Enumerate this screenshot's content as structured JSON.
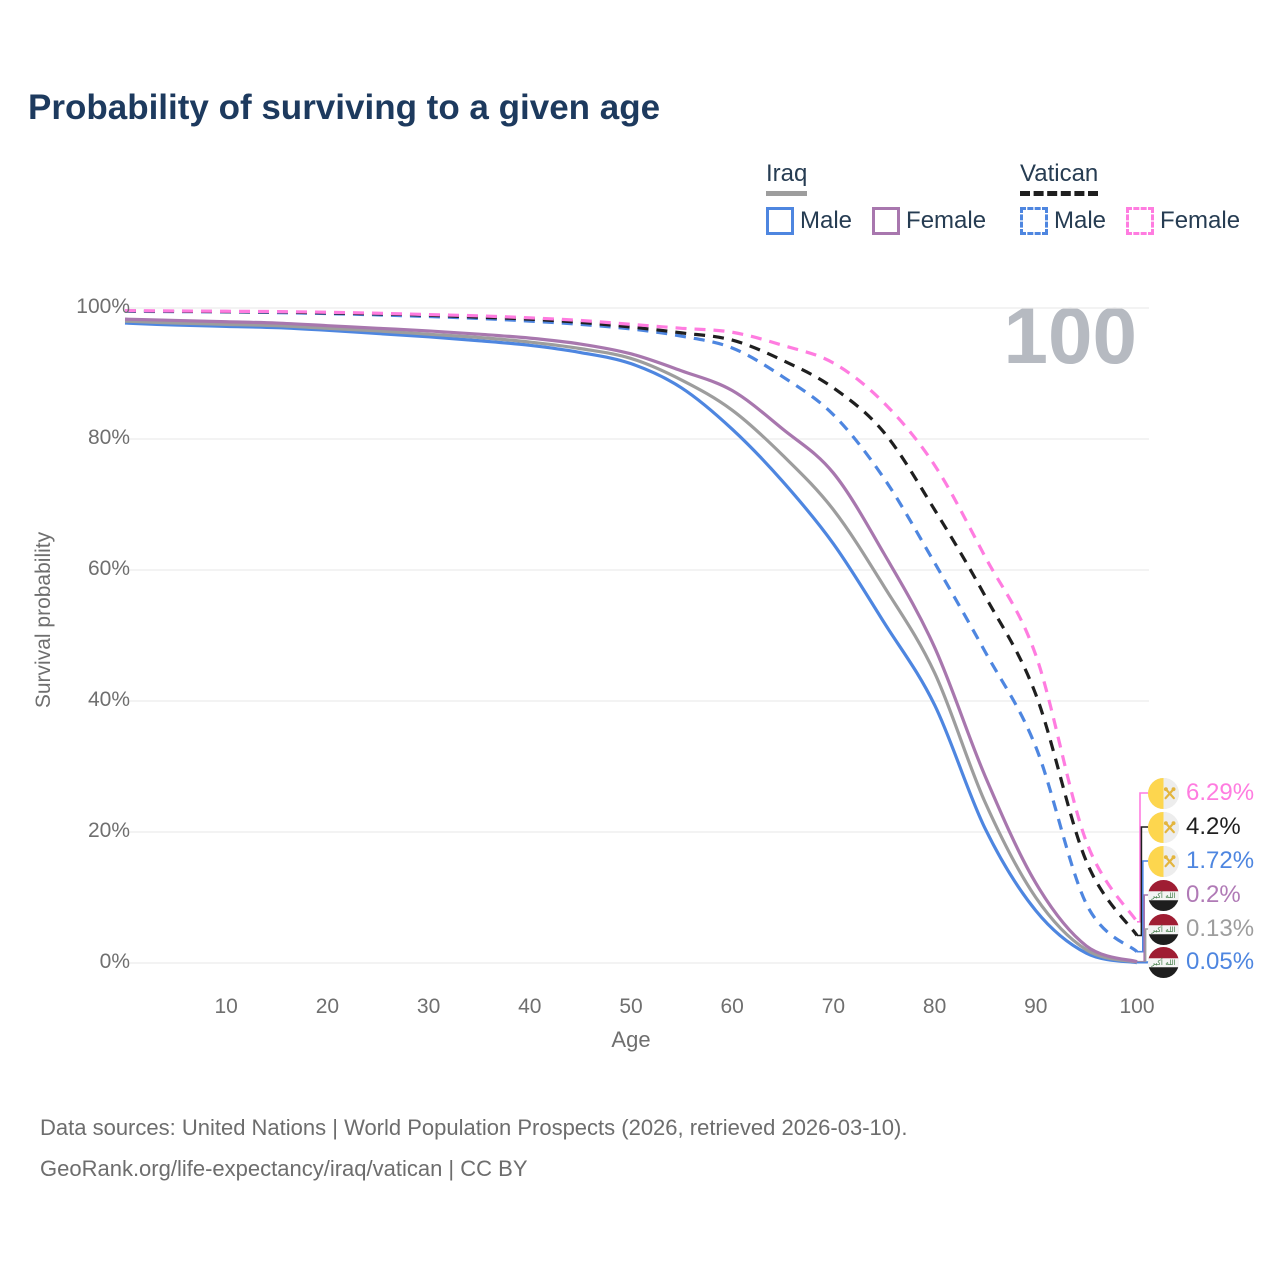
{
  "title": "Probability of surviving to a given age",
  "watermark_age": "100",
  "legend": {
    "groups": [
      {
        "label": "Iraq",
        "line_style": "solid",
        "line_color": "#9d9d9d",
        "items": [
          {
            "label": "Male",
            "color": "#4e86e0"
          },
          {
            "label": "Female",
            "color": "#a877ae"
          }
        ]
      },
      {
        "label": "Vatican",
        "line_style": "dashed",
        "line_color": "#1f1f1f",
        "items": [
          {
            "label": "Male",
            "color": "#4e86e0"
          },
          {
            "label": "Female",
            "color": "#ff7ce0"
          }
        ]
      }
    ]
  },
  "chart_data": {
    "type": "line",
    "title": "Probability of surviving to a given age",
    "xlabel": "Age",
    "ylabel": "Survival probability",
    "xlim": [
      0,
      100
    ],
    "ylim": [
      0,
      100
    ],
    "grid": "horizontal",
    "legend_position": "top-right",
    "x_ticks": [
      10,
      20,
      30,
      40,
      50,
      60,
      70,
      80,
      90,
      100
    ],
    "y_ticks": [
      {
        "label": "0%",
        "value": 0
      },
      {
        "label": "20%",
        "value": 20
      },
      {
        "label": "40%",
        "value": 40
      },
      {
        "label": "60%",
        "value": 60
      },
      {
        "label": "80%",
        "value": 80
      },
      {
        "label": "100%",
        "value": 100
      }
    ],
    "x": [
      0,
      5,
      10,
      15,
      20,
      25,
      30,
      35,
      40,
      45,
      50,
      55,
      60,
      65,
      70,
      75,
      80,
      85,
      90,
      95,
      100
    ],
    "series": [
      {
        "name": "Iraq Male",
        "country": "iraq",
        "sex": "male",
        "color": "#4e86e0",
        "dash": false,
        "values": [
          97.7,
          97.4,
          97.2,
          97.0,
          96.6,
          96.1,
          95.6,
          95.0,
          94.3,
          93.2,
          91.5,
          87.8,
          81.5,
          73.5,
          64.0,
          52.0,
          39.4,
          20.5,
          8.0,
          1.5,
          0.05
        ],
        "end_label": "0.05%",
        "end_label_color": "#4e86e0"
      },
      {
        "name": "Iraq Both sexes",
        "country": "iraq",
        "sex": "both",
        "color": "#9d9d9d",
        "dash": false,
        "values": [
          98.0,
          97.7,
          97.5,
          97.3,
          96.9,
          96.5,
          96.0,
          95.5,
          94.8,
          93.8,
          92.3,
          89.0,
          84.4,
          77.5,
          69.2,
          57.5,
          44.3,
          24.5,
          10.0,
          2.0,
          0.13
        ],
        "end_label": "0.13%",
        "end_label_color": "#9d9d9d"
      },
      {
        "name": "Iraq Female",
        "country": "iraq",
        "sex": "female",
        "color": "#a877ae",
        "dash": false,
        "values": [
          98.3,
          98.1,
          97.9,
          97.7,
          97.3,
          96.9,
          96.5,
          96.0,
          95.4,
          94.5,
          93.0,
          90.4,
          87.4,
          81.5,
          74.8,
          62.5,
          48.2,
          28.5,
          12.2,
          2.6,
          0.2
        ],
        "end_label": "0.2%",
        "end_label_color": "#b07ab6"
      },
      {
        "name": "Vatican Male",
        "country": "vatican",
        "sex": "male",
        "color": "#4e86e0",
        "dash": true,
        "values": [
          99.5,
          99.45,
          99.4,
          99.3,
          99.15,
          98.95,
          98.7,
          98.4,
          98.0,
          97.5,
          96.8,
          95.7,
          93.9,
          89.5,
          83.7,
          74.0,
          61.1,
          47.5,
          33.0,
          9.0,
          1.72
        ],
        "end_label": "1.72%",
        "end_label_color": "#4e86e0"
      },
      {
        "name": "Vatican Both sexes",
        "country": "vatican",
        "sex": "both",
        "color": "#1f1f1f",
        "dash": true,
        "values": [
          99.55,
          99.5,
          99.45,
          99.4,
          99.25,
          99.1,
          98.9,
          98.6,
          98.3,
          97.8,
          97.1,
          96.2,
          95.1,
          92.0,
          87.8,
          81.0,
          69.2,
          56.0,
          41.0,
          15.5,
          4.2
        ],
        "end_label": "4.2%",
        "end_label_color": "#1f1f1f"
      },
      {
        "name": "Vatican Female",
        "country": "vatican",
        "sex": "female",
        "color": "#ff7ce0",
        "dash": true,
        "values": [
          99.6,
          99.55,
          99.5,
          99.45,
          99.35,
          99.2,
          99.0,
          98.8,
          98.5,
          98.1,
          97.5,
          96.9,
          96.3,
          94.3,
          91.6,
          85.5,
          76.0,
          62.0,
          47.0,
          18.5,
          6.29
        ],
        "end_label": "6.29%",
        "end_label_color": "#ff7ce0"
      }
    ]
  },
  "footer": {
    "line1": "Data sources: United Nations | World Population Prospects (2026, retrieved 2026-03-10).",
    "line2": "GeoRank.org/life-expectancy/iraq/vatican | CC BY"
  }
}
